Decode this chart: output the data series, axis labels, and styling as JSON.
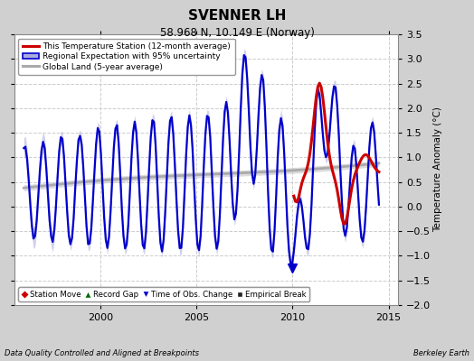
{
  "title": "SVENNER LH",
  "subtitle": "58.968 N, 10.149 E (Norway)",
  "ylabel": "Temperature Anomaly (°C)",
  "footer_left": "Data Quality Controlled and Aligned at Breakpoints",
  "footer_right": "Berkeley Earth",
  "xlim": [
    1995.5,
    2015.5
  ],
  "ylim": [
    -2.0,
    3.5
  ],
  "yticks": [
    -2,
    -1.5,
    -1,
    -0.5,
    0,
    0.5,
    1,
    1.5,
    2,
    2.5,
    3,
    3.5
  ],
  "xticks": [
    2000,
    2005,
    2010,
    2015
  ],
  "fig_bg_color": "#d0d0d0",
  "plot_bg_color": "#ffffff",
  "regional_color": "#0000cc",
  "regional_fill_color": "#aaaadd",
  "station_color": "#cc0000",
  "global_color": "#aaaaaa",
  "legend_items": [
    {
      "label": "This Temperature Station (12-month average)",
      "color": "#cc0000",
      "lw": 2.5
    },
    {
      "label": "Regional Expectation with 95% uncertainty",
      "color": "#0000cc",
      "lw": 2.0
    },
    {
      "label": "Global Land (5-year average)",
      "color": "#aaaaaa",
      "lw": 2.5
    }
  ],
  "marker_legend": [
    {
      "label": "Station Move",
      "marker": "D",
      "color": "#cc0000"
    },
    {
      "label": "Record Gap",
      "marker": "^",
      "color": "#006600"
    },
    {
      "label": "Time of Obs. Change",
      "marker": "v",
      "color": "#0000cc"
    },
    {
      "label": "Empirical Break",
      "marker": "s",
      "color": "#222222"
    }
  ]
}
